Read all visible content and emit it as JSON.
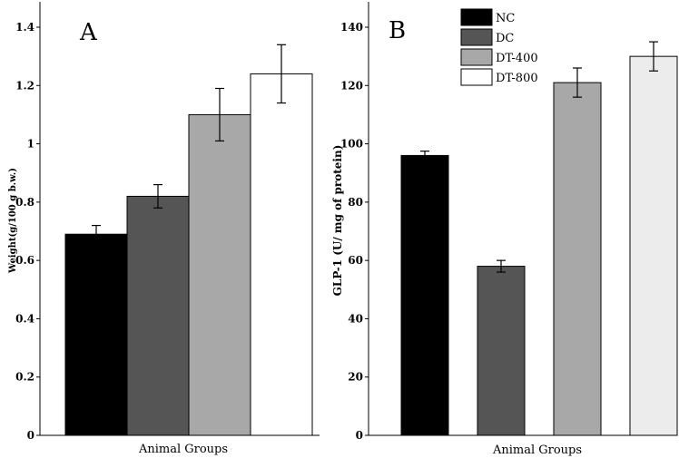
{
  "chart_data": [
    {
      "panel": "A",
      "type": "bar",
      "categories": [
        "NC",
        "DC",
        "DT-400",
        "DT-800"
      ],
      "series": [
        {
          "name": "",
          "values": [
            0.69,
            0.82,
            1.1,
            1.24
          ],
          "errors": [
            0.03,
            0.04,
            0.09,
            0.1
          ]
        }
      ],
      "xlabel": "Animal Groups",
      "ylabel": "Weight(g/100 g b.w.)",
      "ylim": [
        0,
        1.4
      ],
      "yticks": [
        "0",
        "0.2",
        "0.4",
        "0.6",
        "0.8",
        "1",
        "1.2",
        "1.4"
      ],
      "colors": [
        "#000000",
        "#555555",
        "#a8a8a8",
        "#ffffff"
      ],
      "legend": false
    },
    {
      "panel": "B",
      "type": "bar",
      "categories": [
        "NC",
        "DC",
        "DT-400",
        "DT-800"
      ],
      "series": [
        {
          "name": "",
          "values": [
            96,
            58,
            121,
            130
          ],
          "errors": [
            1.5,
            2,
            5,
            5
          ]
        }
      ],
      "xlabel": "Animal Groups",
      "ylabel": "GLP-1 (U/ mg of protein)",
      "ylim": [
        0,
        140
      ],
      "yticks": [
        "0",
        "20",
        "40",
        "60",
        "80",
        "100",
        "120",
        "140"
      ],
      "colors": [
        "#000000",
        "#555555",
        "#a8a8a8",
        "#ececec"
      ],
      "legend": true,
      "legend_position": "top-center",
      "legend_entries": [
        "NC",
        "DC",
        "DT-400",
        "DT-800"
      ]
    }
  ]
}
